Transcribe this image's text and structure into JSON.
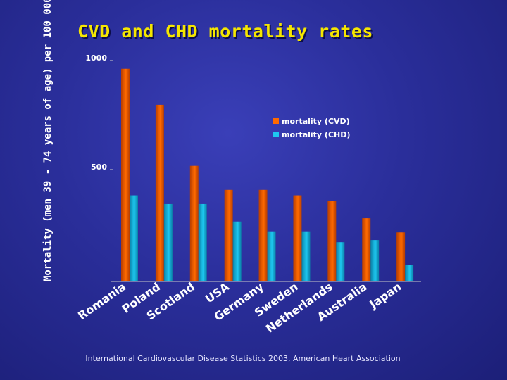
{
  "slide": {
    "title": "CVD and CHD mortality rates",
    "source": "International Cardiovascular Disease Statistics 2003, American Heart Association"
  },
  "colors": {
    "cvd": "#ff6a00",
    "cvd_dark": "#b83e00",
    "chd": "#1ec8f0",
    "chd_dark": "#0a7fa6",
    "axis": "#c8c8c8",
    "text": "#ffffff"
  },
  "chart_data": {
    "type": "bar",
    "title": "CVD and CHD mortality rates",
    "ylabel": "Mortality (men 39 - 74 years of age) per 100 000 population",
    "xlabel": "",
    "ylim": [
      0,
      1000
    ],
    "yticks": [
      {
        "value": 500,
        "label": "500"
      },
      {
        "value": 1000,
        "label": "1000"
      }
    ],
    "categories": [
      "Romania",
      "Poland",
      "Scotland",
      "USA",
      "Germany",
      "Sweden",
      "Netherlands",
      "Australia",
      "Japan"
    ],
    "series": [
      {
        "name": "mortality (CVD)",
        "values": [
          975,
          810,
          530,
          420,
          420,
          395,
          370,
          290,
          225
        ]
      },
      {
        "name": "mortality (CHD)",
        "values": [
          395,
          355,
          355,
          275,
          230,
          230,
          180,
          190,
          75
        ]
      }
    ],
    "legend": [
      "mortality (CVD)",
      "mortality (CHD)"
    ],
    "legend_position": "top-right",
    "grid": false
  }
}
